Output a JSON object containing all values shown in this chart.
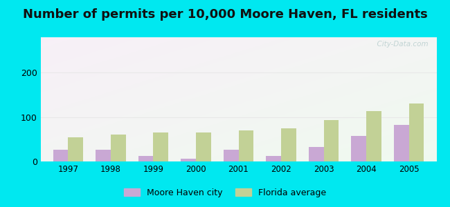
{
  "title": "Number of permits per 10,000 Moore Haven, FL residents",
  "years": [
    1997,
    1998,
    1999,
    2000,
    2001,
    2002,
    2003,
    2004,
    2005
  ],
  "moore_haven": [
    27,
    27,
    13,
    7,
    27,
    13,
    33,
    57,
    83
  ],
  "florida_avg": [
    55,
    60,
    65,
    65,
    70,
    75,
    93,
    113,
    130
  ],
  "moore_haven_color": "#c9a8d4",
  "florida_avg_color": "#c2d196",
  "bar_width": 0.35,
  "ylim": [
    0,
    280
  ],
  "yticks": [
    0,
    100,
    200
  ],
  "figure_bg": "#00e8f0",
  "gridline_color": "#e8e8e8",
  "title_fontsize": 13,
  "watermark": "  City-Data.com",
  "watermark_color": "#b8cece",
  "legend_labels": [
    "Moore Haven city",
    "Florida average"
  ]
}
